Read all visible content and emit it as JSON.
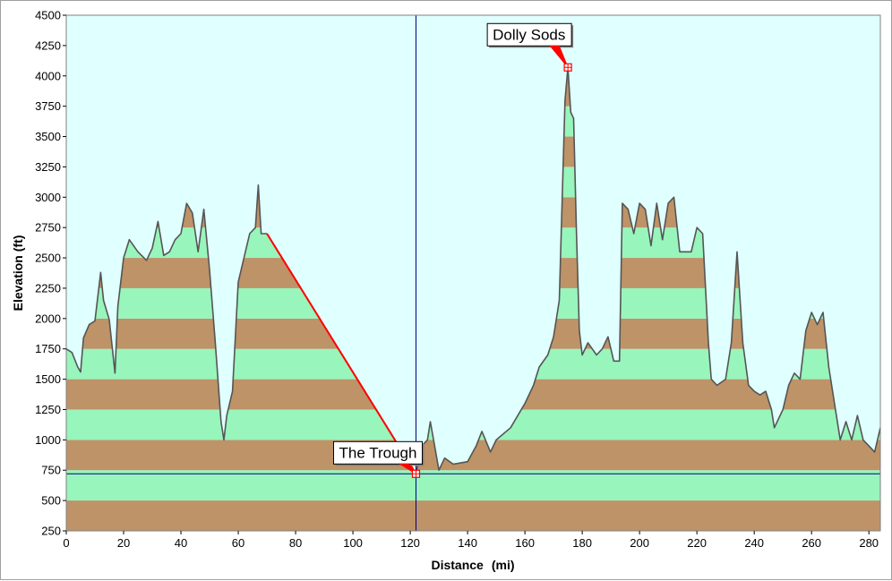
{
  "chart_data": {
    "type": "area",
    "title": "",
    "xlabel": "Distance",
    "xunit": "(mi)",
    "ylabel": "Elevation (ft)",
    "xlim": [
      0,
      284
    ],
    "ylim": [
      250,
      4500
    ],
    "x_ticks": [
      "0",
      "20",
      "40",
      "60",
      "80",
      "100",
      "120",
      "140",
      "160",
      "180",
      "200",
      "220",
      "240",
      "260",
      "280"
    ],
    "y_ticks": [
      "250",
      "500",
      "750",
      "1000",
      "1250",
      "1500",
      "1750",
      "2000",
      "2250",
      "2500",
      "2750",
      "3000",
      "3250",
      "3500",
      "3750",
      "4000",
      "4250",
      "4500"
    ],
    "band_interval": 250,
    "grid": false,
    "colors": {
      "background": "#e0ffff",
      "band_light": "#98f5bc",
      "band_dark": "#be9367",
      "profile_line": "#555555",
      "gap_line": "#ff0000",
      "marker": "#ff0000"
    },
    "series": [
      {
        "x": [
          0,
          2,
          4,
          5,
          6,
          8,
          10,
          12,
          13,
          15,
          17,
          18,
          20,
          22,
          25,
          28,
          30,
          32,
          34,
          36,
          38,
          40,
          42,
          44,
          46,
          48,
          50,
          52,
          54,
          55,
          56,
          58,
          60,
          62,
          64,
          66,
          67,
          68,
          70
        ],
        "values": [
          1750,
          1720,
          1600,
          1560,
          1840,
          1950,
          1980,
          2380,
          2150,
          1990,
          1550,
          2100,
          2500,
          2650,
          2550,
          2480,
          2580,
          2800,
          2520,
          2550,
          2650,
          2700,
          2950,
          2870,
          2550,
          2900,
          2400,
          1800,
          1150,
          1000,
          1200,
          1400,
          2300,
          2500,
          2700,
          2750,
          3100,
          2700,
          2700
        ]
      },
      {
        "x": [
          122,
          124,
          126,
          127,
          130,
          132,
          135,
          140,
          143,
          145,
          148,
          150,
          155,
          160,
          163,
          165,
          168,
          170,
          172,
          174,
          175,
          176,
          177,
          178,
          179,
          180,
          182,
          185,
          187,
          189,
          191,
          193,
          194,
          196,
          198,
          200,
          202,
          204,
          206,
          208,
          210,
          212,
          214,
          216,
          218,
          220,
          222,
          224,
          225,
          227,
          230,
          232,
          234,
          236,
          238,
          240,
          242,
          244,
          246,
          247,
          250,
          252,
          254,
          256,
          258,
          260,
          262,
          264,
          266,
          268,
          270,
          272,
          274,
          276,
          278,
          280,
          282,
          284
        ],
        "values": [
          720,
          950,
          1000,
          1150,
          750,
          850,
          800,
          820,
          950,
          1070,
          900,
          1000,
          1100,
          1300,
          1450,
          1600,
          1700,
          1850,
          2150,
          3800,
          4070,
          3700,
          3650,
          2700,
          1900,
          1700,
          1800,
          1700,
          1750,
          1850,
          1650,
          1650,
          2950,
          2900,
          2700,
          2950,
          2900,
          2600,
          2950,
          2650,
          2950,
          3000,
          2550,
          2550,
          2550,
          2750,
          2700,
          1800,
          1500,
          1450,
          1500,
          1800,
          2550,
          1800,
          1450,
          1400,
          1370,
          1400,
          1250,
          1100,
          1250,
          1450,
          1550,
          1500,
          1900,
          2050,
          1950,
          2050,
          1600,
          1300,
          1000,
          1150,
          1000,
          1200,
          1000,
          950,
          900,
          1100
        ]
      }
    ],
    "gap_line": {
      "from": [
        70,
        2700
      ],
      "to": [
        122,
        720
      ]
    },
    "cursor_x": 122,
    "cursor_y": 720,
    "annotations": [
      {
        "label": "The Trough",
        "x": 122,
        "y": 720
      },
      {
        "label": "Dolly Sods",
        "x": 175,
        "y": 4070
      }
    ]
  }
}
